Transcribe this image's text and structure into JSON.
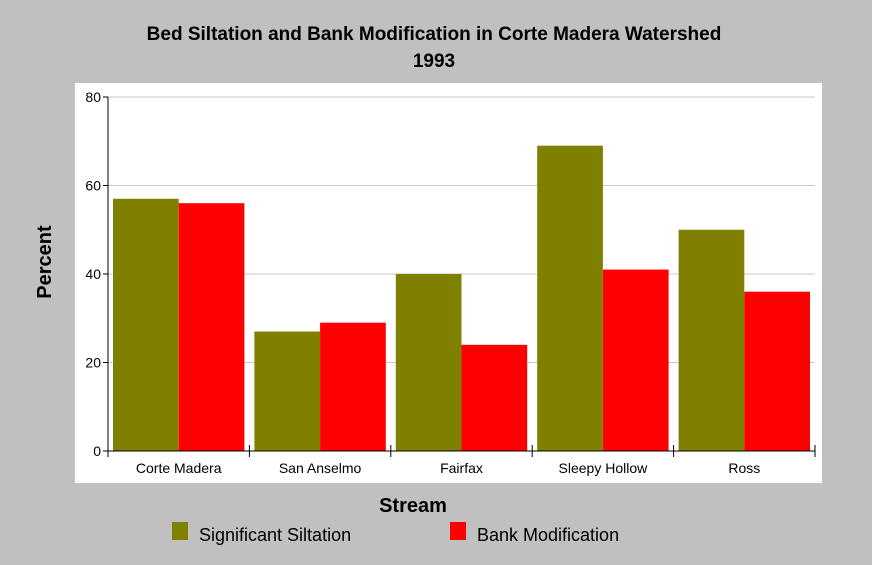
{
  "chart_data": {
    "type": "bar",
    "title": "Bed Siltation and Bank Modification in Corte Madera Watershed",
    "subtitle": "1993",
    "xlabel": "Stream",
    "ylabel": "Percent",
    "ylim": [
      0,
      80
    ],
    "yticks": [
      "0",
      "20",
      "40",
      "60",
      "80"
    ],
    "grid": true,
    "legend_position": "bottom",
    "categories": [
      "Corte Madera",
      "San Anselmo",
      "Fairfax",
      "Sleepy Hollow",
      "Ross"
    ],
    "series": [
      {
        "name": "Significant Siltation",
        "color": "#808000",
        "values": [
          57,
          27,
          40,
          69,
          50
        ]
      },
      {
        "name": "Bank Modification",
        "color": "#ff0000",
        "values": [
          56,
          29,
          24,
          41,
          36
        ]
      }
    ]
  }
}
